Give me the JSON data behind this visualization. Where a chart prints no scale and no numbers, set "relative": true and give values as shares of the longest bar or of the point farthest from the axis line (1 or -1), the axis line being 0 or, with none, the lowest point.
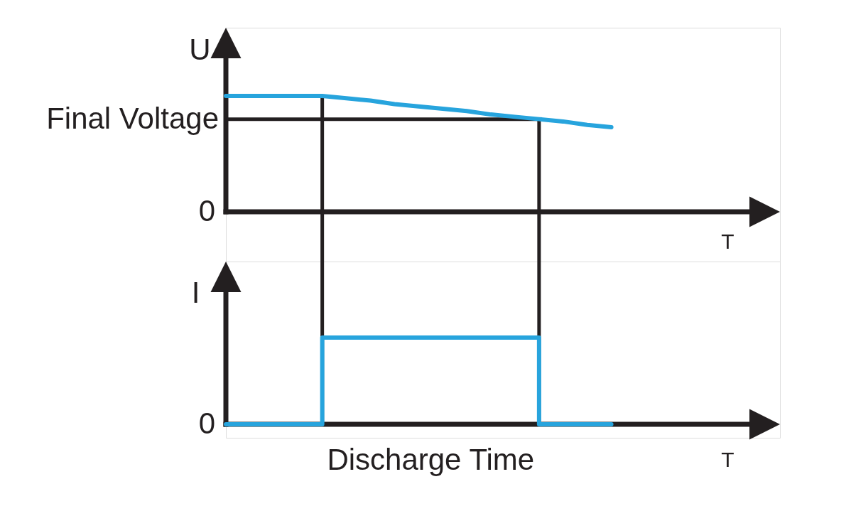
{
  "chart_data": [
    {
      "type": "line",
      "relative": true,
      "ylabel": "U",
      "xlabel": "T",
      "categories": [
        null,
        null,
        null,
        null,
        null,
        null,
        null,
        null,
        null,
        null,
        null,
        null,
        null,
        null,
        null,
        null,
        null,
        null,
        null,
        null,
        null,
        null,
        null
      ],
      "series": [
        {
          "color": "#27a4dd",
          "values": [
            1,
            1,
            1,
            1,
            1,
            0.98,
            0.96,
            0.93,
            0.91,
            0.89,
            0.87,
            0.84,
            0.82,
            0.8,
            0.78,
            0.75,
            0.73,
            null,
            null,
            null,
            null,
            null,
            null
          ]
        }
      ],
      "ref_lines": [
        {
          "axis": "y",
          "value": 0.8,
          "label": "Final Voltage",
          "color": "#231f20"
        }
      ],
      "annotations": [
        "0"
      ]
    },
    {
      "type": "step",
      "relative": true,
      "ylabel": "I",
      "xlabel": "T",
      "categories": [
        null,
        null,
        null,
        null,
        null,
        null,
        null,
        null,
        null,
        null,
        null,
        null,
        null,
        null,
        null,
        null,
        null,
        null,
        null,
        null,
        null,
        null,
        null
      ],
      "series": [
        {
          "color": "#27a4dd",
          "values": [
            0,
            0,
            0,
            0,
            1,
            1,
            1,
            1,
            1,
            1,
            1,
            1,
            1,
            0,
            0,
            0,
            0,
            null,
            null,
            null,
            null,
            null,
            null
          ]
        }
      ],
      "annotations": [
        "0",
        "Discharge Time"
      ]
    }
  ]
}
